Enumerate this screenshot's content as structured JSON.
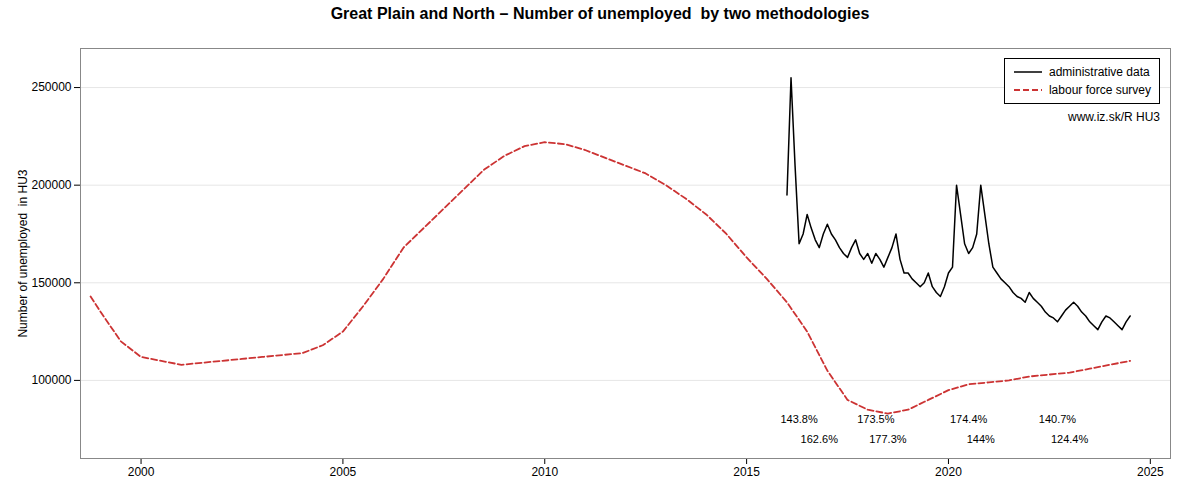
{
  "chart_data": {
    "type": "line",
    "title": "Great Plain and North – Number of unemployed  by two methodologies",
    "ylabel": "Number of unemployed  in HU3",
    "xlim": [
      1998.5,
      2025.5
    ],
    "ylim": [
      60000,
      270000
    ],
    "xticks": [
      2000,
      2005,
      2010,
      2015,
      2020,
      2025
    ],
    "yticks": [
      100000,
      150000,
      200000,
      250000
    ],
    "grid": "y",
    "legend": "upper right",
    "series": [
      {
        "name": "administrative data",
        "color": "#000000",
        "line_style": "solid",
        "x": [
          2016.0,
          2016.1,
          2016.2,
          2016.3,
          2016.4,
          2016.5,
          2016.6,
          2016.7,
          2016.8,
          2016.9,
          2017.0,
          2017.1,
          2017.2,
          2017.3,
          2017.4,
          2017.5,
          2017.6,
          2017.7,
          2017.8,
          2017.9,
          2018.0,
          2018.1,
          2018.2,
          2018.3,
          2018.4,
          2018.5,
          2018.6,
          2018.7,
          2018.8,
          2018.9,
          2019.0,
          2019.1,
          2019.2,
          2019.3,
          2019.4,
          2019.5,
          2019.6,
          2019.7,
          2019.8,
          2019.9,
          2020.0,
          2020.1,
          2020.2,
          2020.3,
          2020.4,
          2020.5,
          2020.6,
          2020.7,
          2020.8,
          2020.9,
          2021.0,
          2021.1,
          2021.2,
          2021.3,
          2021.4,
          2021.5,
          2021.6,
          2021.7,
          2021.8,
          2021.9,
          2022.0,
          2022.1,
          2022.2,
          2022.3,
          2022.4,
          2022.5,
          2022.6,
          2022.7,
          2022.8,
          2022.9,
          2023.0,
          2023.1,
          2023.2,
          2023.3,
          2023.4,
          2023.5,
          2023.6,
          2023.7,
          2023.8,
          2023.9,
          2024.0,
          2024.1,
          2024.2,
          2024.3,
          2024.4,
          2024.5
        ],
        "values": [
          195000,
          255000,
          210000,
          170000,
          175000,
          185000,
          178000,
          172000,
          168000,
          175000,
          180000,
          175000,
          172000,
          168000,
          165000,
          163000,
          168000,
          172000,
          165000,
          162000,
          165000,
          160000,
          165000,
          162000,
          158000,
          163000,
          168000,
          175000,
          162000,
          155000,
          155000,
          152000,
          150000,
          148000,
          150000,
          155000,
          148000,
          145000,
          143000,
          148000,
          155000,
          158000,
          200000,
          185000,
          170000,
          165000,
          168000,
          175000,
          200000,
          185000,
          170000,
          158000,
          155000,
          152000,
          150000,
          148000,
          145000,
          143000,
          142000,
          140000,
          145000,
          142000,
          140000,
          138000,
          135000,
          133000,
          132000,
          130000,
          133000,
          136000,
          138000,
          140000,
          138000,
          135000,
          133000,
          130000,
          128000,
          126000,
          130000,
          133000,
          132000,
          130000,
          128000,
          126000,
          130000,
          133000
        ]
      },
      {
        "name": "labour force survey",
        "color": "#cc3333",
        "line_style": "dashed",
        "x": [
          1998.75,
          1999.0,
          1999.5,
          2000.0,
          2000.5,
          2001.0,
          2001.5,
          2002.0,
          2002.5,
          2003.0,
          2003.5,
          2004.0,
          2004.5,
          2005.0,
          2005.5,
          2006.0,
          2006.5,
          2007.0,
          2007.5,
          2008.0,
          2008.5,
          2009.0,
          2009.5,
          2010.0,
          2010.5,
          2011.0,
          2011.5,
          2012.0,
          2012.5,
          2013.0,
          2013.5,
          2014.0,
          2014.5,
          2015.0,
          2015.5,
          2016.0,
          2016.5,
          2017.0,
          2017.5,
          2018.0,
          2018.5,
          2019.0,
          2019.5,
          2020.0,
          2020.5,
          2021.0,
          2021.5,
          2022.0,
          2022.5,
          2023.0,
          2023.5,
          2024.0,
          2024.5
        ],
        "values": [
          143000,
          135000,
          120000,
          112000,
          110000,
          108000,
          109000,
          110000,
          111000,
          112000,
          113000,
          114000,
          118000,
          125000,
          138000,
          152000,
          168000,
          178000,
          188000,
          198000,
          208000,
          215000,
          220000,
          222000,
          221000,
          218000,
          214000,
          210000,
          206000,
          200000,
          193000,
          185000,
          175000,
          163000,
          152000,
          140000,
          125000,
          105000,
          90000,
          85000,
          83000,
          85000,
          90000,
          95000,
          98000,
          99000,
          100000,
          102000,
          103000,
          104000,
          106000,
          108000,
          110000
        ]
      }
    ],
    "annotations": [
      {
        "x": 2016.8,
        "y": 68000,
        "text": "162.6%"
      },
      {
        "x": 2018.5,
        "y": 68000,
        "text": "177.3%"
      },
      {
        "x": 2020.8,
        "y": 68000,
        "text": "144%"
      },
      {
        "x": 2023.0,
        "y": 68000,
        "text": "124.4%"
      },
      {
        "x": 2016.3,
        "y": 78000,
        "text": "143.8%"
      },
      {
        "x": 2018.2,
        "y": 78000,
        "text": "173.5%"
      },
      {
        "x": 2020.5,
        "y": 78000,
        "text": "174.4%"
      },
      {
        "x": 2022.7,
        "y": 78000,
        "text": "140.7%"
      },
      {
        "text": "www.iz.sk/R HU3"
      }
    ]
  }
}
